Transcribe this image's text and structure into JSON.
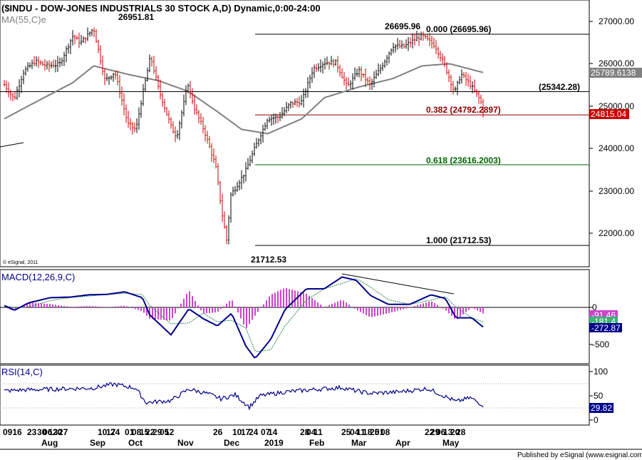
{
  "title": "($INDU - DOW-JONES INDUSTRIALS 30 STOCK A,D) Dynamic,0:00-24:00",
  "ma_label": "MA(55,C)e",
  "copyright": "© eSignal, 2011",
  "footer": "Published by eSignal (www.esignal.com)",
  "colors": {
    "up_bar": "#000000",
    "down_bar": "#cc0000",
    "ma": "#808080",
    "fib_0382": "#8b0000",
    "fib_0618": "#006400",
    "macd": "#00008b",
    "signal": "#2e8b57",
    "hist": "#cc44cc",
    "rsi": "#00008b",
    "tag_red": "#cc0000",
    "tag_green": "#3cb371",
    "tag_navy": "#00008b"
  },
  "annotations": {
    "high_label": "26951.81",
    "low_label": "21712.53",
    "peak2_label": "26695.96",
    "level_25342": "(25342.28)",
    "fib_0": "0.000 (26695.96)",
    "fib_0382": "0.382 (24792.2897)",
    "fib_0618": "0.618 (23616.2003)",
    "fib_1": "1.000 (21712.53)"
  },
  "price_tags": {
    "ma_value": "25789.6138",
    "last_price": "24815.04"
  },
  "price_axis": [
    "27000.00",
    "26000.00",
    "25000.00",
    "24000.00",
    "23000.00",
    "22000.00"
  ],
  "macd": {
    "label": "MACD(12,26,9,C)",
    "axis": [
      "0",
      "-500"
    ],
    "tag_hist": "-91.46",
    "tag_signal": "-181.4",
    "tag_macd": "-272.87"
  },
  "rsi": {
    "label": "RSI(14,C)",
    "axis": [
      "100",
      "50",
      "0"
    ],
    "tag_value": "29.82"
  },
  "x_axis": {
    "day_labels": [
      "0916",
      "23",
      "30",
      "06",
      "13",
      "20",
      "27",
      "10",
      "17",
      "24",
      "01",
      "08",
      "15",
      "22",
      "29",
      "05",
      "12",
      "26",
      "10",
      "17",
      "24",
      "07",
      "14",
      "28",
      "04",
      "11",
      "25",
      "04",
      "11",
      "18",
      "25",
      "01",
      "08",
      "22",
      "29",
      "06",
      "13",
      "20",
      "28"
    ],
    "month_labels": [
      "Aug",
      "Sep",
      "Oct",
      "Nov",
      "Dec",
      "2019",
      "Feb",
      "Mar",
      "Apr",
      "May"
    ]
  },
  "chart_data": {
    "type": "candlestick",
    "title": "($INDU - DOW-JONES INDUSTRIALS 30 STOCK A,D) Dynamic,0:00-24:00",
    "overlays": [
      "MA(55,C)e"
    ],
    "ylim": [
      21500,
      27400
    ],
    "key_points": [
      {
        "label": "high",
        "date": "2018-10-03",
        "value": 26951.81
      },
      {
        "label": "low",
        "date": "2018-12-26",
        "value": 21712.53
      },
      {
        "label": "peak",
        "date": "2019-04-23",
        "value": 26695.96
      }
    ],
    "horizontal_levels": [
      {
        "label": "0.000 (26695.96)",
        "value": 26695.96
      },
      {
        "label": "(25342.28)",
        "value": 25342.28
      },
      {
        "label": "0.382 (24792.2897)",
        "value": 24792.2897
      },
      {
        "label": "0.618 (23616.2003)",
        "value": 23616.2003
      },
      {
        "label": "1.000 (21712.53)",
        "value": 21712.53
      }
    ],
    "last_close": 24815.04,
    "ma_last": 25789.6138,
    "price_path": [
      [
        "2018-08-09",
        25510
      ],
      [
        "2018-08-15",
        25160
      ],
      [
        "2018-08-21",
        25820
      ],
      [
        "2018-08-28",
        26060
      ],
      [
        "2018-09-04",
        25950
      ],
      [
        "2018-09-12",
        25990
      ],
      [
        "2018-09-20",
        26650
      ],
      [
        "2018-09-25",
        26500
      ],
      [
        "2018-10-03",
        26830
      ],
      [
        "2018-10-10",
        25600
      ],
      [
        "2018-10-16",
        25800
      ],
      [
        "2018-10-24",
        24580
      ],
      [
        "2018-10-29",
        24440
      ],
      [
        "2018-11-02",
        25270
      ],
      [
        "2018-11-07",
        26180
      ],
      [
        "2018-11-12",
        25390
      ],
      [
        "2018-11-20",
        24470
      ],
      [
        "2018-11-23",
        24280
      ],
      [
        "2018-11-30",
        25530
      ],
      [
        "2018-12-04",
        24950
      ],
      [
        "2018-12-10",
        24420
      ],
      [
        "2018-12-17",
        23590
      ],
      [
        "2018-12-21",
        22450
      ],
      [
        "2018-12-24",
        21790
      ],
      [
        "2018-12-26",
        22880
      ],
      [
        "2019-01-04",
        23430
      ],
      [
        "2019-01-10",
        24000
      ],
      [
        "2019-01-18",
        24710
      ],
      [
        "2019-01-25",
        24740
      ],
      [
        "2019-02-01",
        25060
      ],
      [
        "2019-02-08",
        25110
      ],
      [
        "2019-02-15",
        25880
      ],
      [
        "2019-02-22",
        26030
      ],
      [
        "2019-03-01",
        26030
      ],
      [
        "2019-03-08",
        25450
      ],
      [
        "2019-03-15",
        25850
      ],
      [
        "2019-03-22",
        25500
      ],
      [
        "2019-03-29",
        25930
      ],
      [
        "2019-04-05",
        26420
      ],
      [
        "2019-04-12",
        26410
      ],
      [
        "2019-04-18",
        26560
      ],
      [
        "2019-04-23",
        26660
      ],
      [
        "2019-05-01",
        26430
      ],
      [
        "2019-05-07",
        25960
      ],
      [
        "2019-05-13",
        25320
      ],
      [
        "2019-05-17",
        25760
      ],
      [
        "2019-05-23",
        25490
      ],
      [
        "2019-05-29",
        25130
      ],
      [
        "2019-05-31",
        24815
      ]
    ],
    "ma_path": [
      [
        "2018-08-09",
        24700
      ],
      [
        "2018-08-31",
        25150
      ],
      [
        "2018-09-20",
        25550
      ],
      [
        "2018-10-03",
        25950
      ],
      [
        "2018-10-24",
        25750
      ],
      [
        "2018-11-12",
        25600
      ],
      [
        "2018-11-30",
        25350
      ],
      [
        "2018-12-17",
        24900
      ],
      [
        "2019-01-02",
        24450
      ],
      [
        "2019-01-18",
        24350
      ],
      [
        "2019-02-08",
        24700
      ],
      [
        "2019-02-22",
        25200
      ],
      [
        "2019-03-15",
        25450
      ],
      [
        "2019-04-05",
        25650
      ],
      [
        "2019-04-23",
        25950
      ],
      [
        "2019-05-10",
        26000
      ],
      [
        "2019-05-31",
        25790
      ]
    ]
  }
}
